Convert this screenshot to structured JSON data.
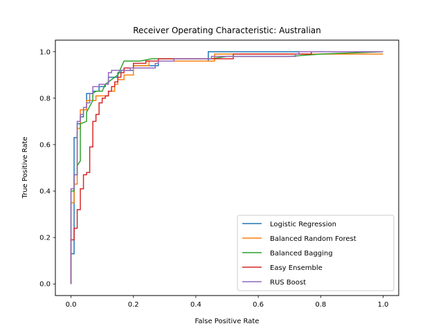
{
  "chart_data": {
    "type": "line",
    "title": "Receiver Operating Characteristic: Australian",
    "xlabel": "False Positive Rate",
    "ylabel": "True Positive Rate",
    "xlim": [
      -0.05,
      1.05
    ],
    "ylim": [
      -0.05,
      1.05
    ],
    "xticks": [
      "0.0",
      "0.2",
      "0.4",
      "0.6",
      "0.8",
      "1.0"
    ],
    "yticks": [
      "0.0",
      "0.2",
      "0.4",
      "0.6",
      "0.8",
      "1.0"
    ],
    "grid": false,
    "legend_position": "lower-right",
    "series": [
      {
        "name": "Logistic Regression",
        "color": "#1f77b4",
        "points": [
          [
            0,
            0
          ],
          [
            0,
            0.13
          ],
          [
            0.01,
            0.13
          ],
          [
            0.01,
            0.63
          ],
          [
            0.02,
            0.63
          ],
          [
            0.02,
            0.69
          ],
          [
            0.03,
            0.69
          ],
          [
            0.03,
            0.72
          ],
          [
            0.04,
            0.72
          ],
          [
            0.04,
            0.75
          ],
          [
            0.05,
            0.75
          ],
          [
            0.05,
            0.82
          ],
          [
            0.07,
            0.82
          ],
          [
            0.07,
            0.83
          ],
          [
            0.09,
            0.83
          ],
          [
            0.09,
            0.85
          ],
          [
            0.11,
            0.85
          ],
          [
            0.11,
            0.86
          ],
          [
            0.12,
            0.86
          ],
          [
            0.12,
            0.89
          ],
          [
            0.15,
            0.89
          ],
          [
            0.15,
            0.91
          ],
          [
            0.16,
            0.91
          ],
          [
            0.16,
            0.92
          ],
          [
            0.2,
            0.92
          ],
          [
            0.2,
            0.94
          ],
          [
            0.28,
            0.94
          ],
          [
            0.28,
            0.96
          ],
          [
            0.44,
            0.96
          ],
          [
            0.44,
            1.0
          ],
          [
            1.0,
            1.0
          ]
        ]
      },
      {
        "name": "Balanced Random Forest",
        "color": "#ff7f0e",
        "points": [
          [
            0,
            0
          ],
          [
            0,
            0.35
          ],
          [
            0.01,
            0.35
          ],
          [
            0.01,
            0.43
          ],
          [
            0.02,
            0.43
          ],
          [
            0.02,
            0.67
          ],
          [
            0.03,
            0.67
          ],
          [
            0.03,
            0.75
          ],
          [
            0.05,
            0.75
          ],
          [
            0.05,
            0.79
          ],
          [
            0.08,
            0.79
          ],
          [
            0.08,
            0.81
          ],
          [
            0.12,
            0.81
          ],
          [
            0.12,
            0.83
          ],
          [
            0.14,
            0.83
          ],
          [
            0.14,
            0.86
          ],
          [
            0.15,
            0.86
          ],
          [
            0.15,
            0.88
          ],
          [
            0.17,
            0.88
          ],
          [
            0.17,
            0.9
          ],
          [
            0.2,
            0.9
          ],
          [
            0.2,
            0.94
          ],
          [
            0.25,
            0.94
          ],
          [
            0.25,
            0.96
          ],
          [
            0.46,
            0.96
          ],
          [
            0.46,
            0.99
          ],
          [
            1.0,
            0.99
          ]
        ]
      },
      {
        "name": "Balanced Bagging",
        "color": "#2ca02c",
        "points": [
          [
            0,
            0
          ],
          [
            0,
            0.4
          ],
          [
            0.01,
            0.4
          ],
          [
            0.01,
            0.47
          ],
          [
            0.02,
            0.47
          ],
          [
            0.02,
            0.51
          ],
          [
            0.03,
            0.53
          ],
          [
            0.03,
            0.69
          ],
          [
            0.05,
            0.7
          ],
          [
            0.05,
            0.74
          ],
          [
            0.07,
            0.79
          ],
          [
            0.07,
            0.82
          ],
          [
            0.08,
            0.83
          ],
          [
            0.1,
            0.83
          ],
          [
            0.11,
            0.86
          ],
          [
            0.13,
            0.88
          ],
          [
            0.15,
            0.9
          ],
          [
            0.16,
            0.93
          ],
          [
            0.17,
            0.96
          ],
          [
            0.22,
            0.96
          ],
          [
            0.26,
            0.97
          ],
          [
            0.45,
            0.97
          ],
          [
            0.5,
            0.98
          ],
          [
            0.7,
            0.98
          ],
          [
            0.8,
            0.99
          ],
          [
            1.0,
            1.0
          ]
        ]
      },
      {
        "name": "Easy Ensemble",
        "color": "#d62728",
        "points": [
          [
            0,
            0
          ],
          [
            0,
            0.19
          ],
          [
            0.01,
            0.19
          ],
          [
            0.01,
            0.24
          ],
          [
            0.02,
            0.24
          ],
          [
            0.02,
            0.32
          ],
          [
            0.03,
            0.32
          ],
          [
            0.03,
            0.41
          ],
          [
            0.04,
            0.41
          ],
          [
            0.04,
            0.47
          ],
          [
            0.05,
            0.47
          ],
          [
            0.05,
            0.48
          ],
          [
            0.06,
            0.48
          ],
          [
            0.06,
            0.59
          ],
          [
            0.07,
            0.59
          ],
          [
            0.07,
            0.7
          ],
          [
            0.08,
            0.7
          ],
          [
            0.08,
            0.73
          ],
          [
            0.09,
            0.73
          ],
          [
            0.09,
            0.78
          ],
          [
            0.1,
            0.78
          ],
          [
            0.1,
            0.8
          ],
          [
            0.11,
            0.8
          ],
          [
            0.11,
            0.81
          ],
          [
            0.12,
            0.81
          ],
          [
            0.12,
            0.83
          ],
          [
            0.13,
            0.83
          ],
          [
            0.13,
            0.85
          ],
          [
            0.14,
            0.85
          ],
          [
            0.14,
            0.87
          ],
          [
            0.15,
            0.87
          ],
          [
            0.15,
            0.89
          ],
          [
            0.16,
            0.89
          ],
          [
            0.16,
            0.91
          ],
          [
            0.17,
            0.91
          ],
          [
            0.17,
            0.93
          ],
          [
            0.2,
            0.93
          ],
          [
            0.2,
            0.95
          ],
          [
            0.24,
            0.95
          ],
          [
            0.24,
            0.96
          ],
          [
            0.28,
            0.96
          ],
          [
            0.28,
            0.97
          ],
          [
            0.52,
            0.97
          ],
          [
            0.52,
            0.99
          ],
          [
            0.77,
            0.99
          ],
          [
            0.77,
            1.0
          ],
          [
            1.0,
            1.0
          ]
        ]
      },
      {
        "name": "RUS Boost",
        "color": "#9467bd",
        "points": [
          [
            0,
            0
          ],
          [
            0,
            0.41
          ],
          [
            0.01,
            0.41
          ],
          [
            0.01,
            0.47
          ],
          [
            0.02,
            0.47
          ],
          [
            0.02,
            0.7
          ],
          [
            0.03,
            0.7
          ],
          [
            0.03,
            0.73
          ],
          [
            0.04,
            0.73
          ],
          [
            0.04,
            0.76
          ],
          [
            0.05,
            0.76
          ],
          [
            0.05,
            0.78
          ],
          [
            0.06,
            0.78
          ],
          [
            0.06,
            0.82
          ],
          [
            0.07,
            0.82
          ],
          [
            0.07,
            0.85
          ],
          [
            0.09,
            0.85
          ],
          [
            0.09,
            0.86
          ],
          [
            0.12,
            0.86
          ],
          [
            0.12,
            0.91
          ],
          [
            0.13,
            0.91
          ],
          [
            0.13,
            0.92
          ],
          [
            0.19,
            0.92
          ],
          [
            0.19,
            0.93
          ],
          [
            0.27,
            0.93
          ],
          [
            0.27,
            0.95
          ],
          [
            0.28,
            0.95
          ],
          [
            0.28,
            0.96
          ],
          [
            0.33,
            0.96
          ],
          [
            0.33,
            0.97
          ],
          [
            0.45,
            0.97
          ],
          [
            0.45,
            0.98
          ],
          [
            0.72,
            0.98
          ],
          [
            0.72,
            0.99
          ],
          [
            0.73,
            0.99
          ],
          [
            0.73,
            1.0
          ],
          [
            1.0,
            1.0
          ]
        ]
      }
    ]
  }
}
